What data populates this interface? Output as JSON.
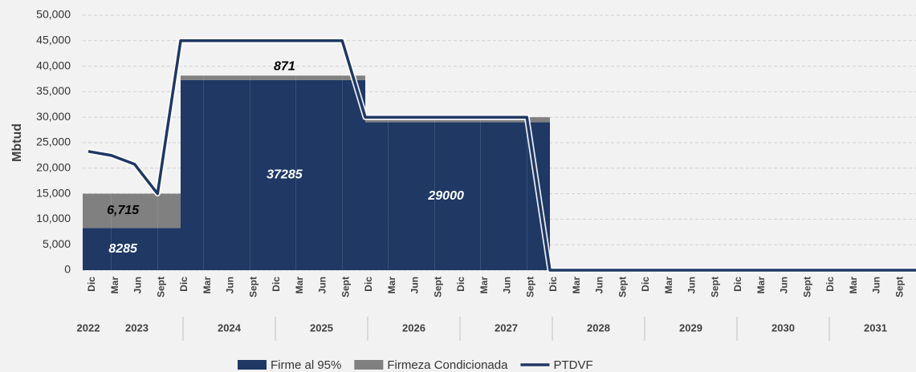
{
  "chart_data": {
    "type": "step-area",
    "ylabel": "Mbtud",
    "categories": [
      "Dic",
      "Mar",
      "Jun",
      "Sept",
      "Dic",
      "Mar",
      "Jun",
      "Sept",
      "Dic",
      "Mar",
      "Jun",
      "Sept",
      "Dic",
      "Mar",
      "Jun",
      "Sept",
      "Dic",
      "Mar",
      "Jun",
      "Sept",
      "Dic",
      "Mar",
      "Jun",
      "Sept",
      "Dic",
      "Mar",
      "Jun",
      "Sept",
      "Dic",
      "Mar",
      "Jun",
      "Sept",
      "Dic",
      "Mar",
      "Jun",
      "Sept",
      "Dic"
    ],
    "year_groups": [
      "2022",
      "2023",
      "2024",
      "2025",
      "2026",
      "2027",
      "2028",
      "2029",
      "2030",
      "2031"
    ],
    "ylim": [
      0,
      50000
    ],
    "yticks": [
      0,
      {
        "value": 5000,
        "label": "5,000"
      },
      {
        "value": 10000,
        "label": "10,000"
      },
      {
        "value": 15000,
        "label": "15,000"
      },
      {
        "value": 20000,
        "label": "20,000"
      },
      {
        "value": 25000,
        "label": "25,000"
      },
      {
        "value": 30000,
        "label": "30,000"
      },
      {
        "value": 35000,
        "label": "35,000"
      },
      {
        "value": 40000,
        "label": "40,000"
      },
      {
        "value": 45000,
        "label": "45,000"
      },
      {
        "value": 50000,
        "label": "50,000"
      }
    ],
    "grid": true,
    "legend": "bottom",
    "series": [
      {
        "name": "Firme al 95%",
        "kind": "area",
        "color": "#1f3864",
        "values": [
          8285,
          8285,
          8285,
          8285,
          37285,
          37285,
          37285,
          37285,
          37285,
          37285,
          37285,
          37285,
          29000,
          29000,
          29000,
          29000,
          29000,
          29000,
          29000,
          29000,
          0,
          0,
          0,
          0,
          0,
          0,
          0,
          0,
          0,
          0,
          0,
          0,
          0,
          0,
          0,
          0,
          0
        ],
        "value_labels": [
          null,
          "8285",
          null,
          null,
          null,
          null,
          null,
          null,
          "37285",
          null,
          null,
          null,
          null,
          null,
          null,
          "29000",
          null,
          null,
          null,
          null,
          null,
          null,
          null,
          null,
          null,
          null,
          null,
          null,
          null,
          null,
          null,
          null,
          null,
          null,
          null,
          null,
          null
        ]
      },
      {
        "name": "Firmeza Condicionada",
        "kind": "area",
        "color": "#808080",
        "values": [
          6715,
          6715,
          6715,
          6715,
          871,
          871,
          871,
          871,
          871,
          871,
          871,
          871,
          1000,
          1000,
          1000,
          1000,
          1000,
          1000,
          1000,
          1000,
          0,
          0,
          0,
          0,
          0,
          0,
          0,
          0,
          0,
          0,
          0,
          0,
          0,
          0,
          0,
          0,
          0
        ],
        "value_labels": [
          null,
          "6,715",
          null,
          null,
          null,
          null,
          null,
          null,
          "871",
          null,
          null,
          null,
          null,
          null,
          null,
          null,
          null,
          null,
          null,
          null,
          null,
          null,
          null,
          null,
          null,
          null,
          null,
          null,
          null,
          null,
          null,
          null,
          null,
          null,
          null,
          null,
          null
        ]
      },
      {
        "name": "PTDVF",
        "kind": "line",
        "color": "#1f3864",
        "values": [
          23300,
          22500,
          20800,
          15000,
          45000,
          45000,
          45000,
          45000,
          45000,
          45000,
          45000,
          45000,
          30000,
          30000,
          30000,
          30000,
          30000,
          30000,
          30000,
          30000,
          0,
          0,
          0,
          0,
          0,
          0,
          0,
          0,
          0,
          0,
          0,
          0,
          0,
          0,
          0,
          0,
          0
        ]
      }
    ]
  }
}
